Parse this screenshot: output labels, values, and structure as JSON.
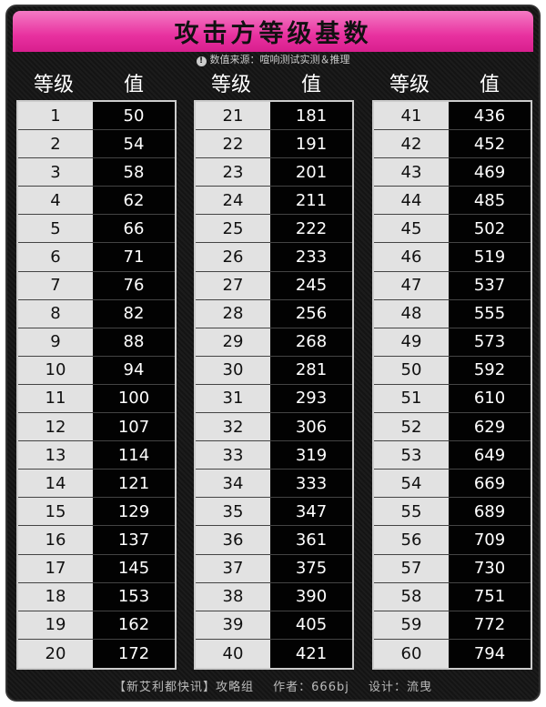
{
  "title": "攻击方等级基数",
  "source": {
    "icon": "exclamation-circle-icon",
    "text": "数值来源：喧响测试实测＆推理"
  },
  "headers": {
    "level": "等级",
    "value": "值"
  },
  "columns": [
    [
      [
        1,
        50
      ],
      [
        2,
        54
      ],
      [
        3,
        58
      ],
      [
        4,
        62
      ],
      [
        5,
        66
      ],
      [
        6,
        71
      ],
      [
        7,
        76
      ],
      [
        8,
        82
      ],
      [
        9,
        88
      ],
      [
        10,
        94
      ],
      [
        11,
        100
      ],
      [
        12,
        107
      ],
      [
        13,
        114
      ],
      [
        14,
        121
      ],
      [
        15,
        129
      ],
      [
        16,
        137
      ],
      [
        17,
        145
      ],
      [
        18,
        153
      ],
      [
        19,
        162
      ],
      [
        20,
        172
      ]
    ],
    [
      [
        21,
        181
      ],
      [
        22,
        191
      ],
      [
        23,
        201
      ],
      [
        24,
        211
      ],
      [
        25,
        222
      ],
      [
        26,
        233
      ],
      [
        27,
        245
      ],
      [
        28,
        256
      ],
      [
        29,
        268
      ],
      [
        30,
        281
      ],
      [
        31,
        293
      ],
      [
        32,
        306
      ],
      [
        33,
        319
      ],
      [
        34,
        333
      ],
      [
        35,
        347
      ],
      [
        36,
        361
      ],
      [
        37,
        375
      ],
      [
        38,
        390
      ],
      [
        39,
        405
      ],
      [
        40,
        421
      ]
    ],
    [
      [
        41,
        436
      ],
      [
        42,
        452
      ],
      [
        43,
        469
      ],
      [
        44,
        485
      ],
      [
        45,
        502
      ],
      [
        46,
        519
      ],
      [
        47,
        537
      ],
      [
        48,
        555
      ],
      [
        49,
        573
      ],
      [
        50,
        592
      ],
      [
        51,
        610
      ],
      [
        52,
        629
      ],
      [
        53,
        649
      ],
      [
        54,
        669
      ],
      [
        55,
        689
      ],
      [
        56,
        709
      ],
      [
        57,
        730
      ],
      [
        58,
        751
      ],
      [
        59,
        772
      ],
      [
        60,
        794
      ]
    ]
  ],
  "footer": {
    "group": "【新艾利都快讯】攻略组",
    "author": "作者：666bj",
    "design": "设计：流曳"
  },
  "colors": {
    "accent": "#e8319f",
    "background": "#141414",
    "level_cell": "#e2e2e2"
  }
}
